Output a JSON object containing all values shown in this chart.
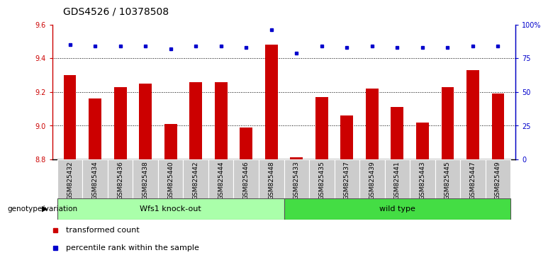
{
  "title": "GDS4526 / 10378508",
  "categories": [
    "GSM825432",
    "GSM825434",
    "GSM825436",
    "GSM825438",
    "GSM825440",
    "GSM825442",
    "GSM825444",
    "GSM825446",
    "GSM825448",
    "GSM825433",
    "GSM825435",
    "GSM825437",
    "GSM825439",
    "GSM825441",
    "GSM825443",
    "GSM825445",
    "GSM825447",
    "GSM825449"
  ],
  "bar_values": [
    9.3,
    9.16,
    9.23,
    9.25,
    9.01,
    9.26,
    9.26,
    8.99,
    9.48,
    8.81,
    9.17,
    9.06,
    9.22,
    9.11,
    9.02,
    9.23,
    9.33,
    9.19
  ],
  "percentile_values": [
    85,
    84,
    84,
    84,
    82,
    84,
    84,
    83,
    96,
    79,
    84,
    83,
    84,
    83,
    83,
    83,
    84,
    84
  ],
  "bar_color": "#cc0000",
  "dot_color": "#0000cc",
  "ylim_left": [
    8.8,
    9.6
  ],
  "ylim_right": [
    0,
    100
  ],
  "yticks_left": [
    8.8,
    9.0,
    9.2,
    9.4,
    9.6
  ],
  "yticks_right": [
    0,
    25,
    50,
    75,
    100
  ],
  "ytick_labels_right": [
    "0",
    "25",
    "50",
    "75",
    "100%"
  ],
  "group1_label": "Wfs1 knock-out",
  "group2_label": "wild type",
  "group1_color": "#aaffaa",
  "group2_color": "#44dd44",
  "group1_count": 9,
  "group2_count": 9,
  "legend_bar_label": "transformed count",
  "legend_dot_label": "percentile rank within the sample",
  "genotype_label": "genotype/variation",
  "left_color": "#cc0000",
  "right_color": "#0000cc",
  "plot_bg": "#ffffff",
  "tick_bg": "#cccccc",
  "title_fontsize": 10,
  "tick_fontsize": 7,
  "label_fontsize": 8
}
